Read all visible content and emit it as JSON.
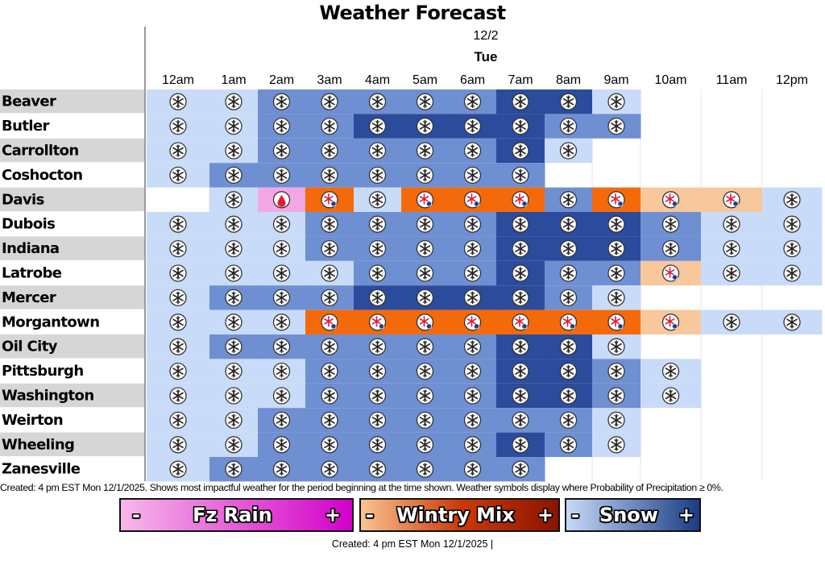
{
  "header": {
    "title": "Weather Forecast",
    "date": "12/2",
    "day": "Tue"
  },
  "chart_data": {
    "type": "heatmap",
    "title": "Weather Forecast",
    "x": [
      "12am",
      "1am",
      "2am",
      "3am",
      "4am",
      "5am",
      "6am",
      "7am",
      "8am",
      "9am",
      "10am",
      "11am",
      "12pm"
    ],
    "y": [
      "Beaver",
      "Butler",
      "Carrollton",
      "Coshocton",
      "Davis",
      "Dubois",
      "Indiana",
      "Latrobe",
      "Mercer",
      "Morgantown",
      "Oil City",
      "Pittsburgh",
      "Washington",
      "Weirton",
      "Wheeling",
      "Zanesville"
    ],
    "cells": [
      [
        "S1",
        "S1",
        "S2",
        "S2",
        "S2",
        "S2",
        "S2",
        "S3",
        "S3",
        "S1",
        null,
        null,
        null
      ],
      [
        "S1",
        "S1",
        "S2",
        "S2",
        "S3",
        "S3",
        "S3",
        "S3",
        "S2",
        "S2",
        null,
        null,
        null
      ],
      [
        "S1",
        "S1",
        "S2",
        "S2",
        "S2",
        "S2",
        "S2",
        "S3",
        "S1",
        null,
        null,
        null,
        null
      ],
      [
        "S1",
        "S2",
        "S2",
        "S2",
        "S2",
        "S2",
        "S2",
        "S2",
        null,
        null,
        null,
        null,
        null
      ],
      [
        null,
        "S1",
        "R1",
        "W3",
        "S1",
        "W3",
        "W3",
        "W3",
        "S2",
        "W3",
        "W1",
        "W1",
        "S1"
      ],
      [
        "S1",
        "S1",
        "S1",
        "S2",
        "S2",
        "S2",
        "S2",
        "S3",
        "S3",
        "S3",
        "S2",
        "S1",
        "S1"
      ],
      [
        "S1",
        "S1",
        "S1",
        "S2",
        "S2",
        "S2",
        "S2",
        "S3",
        "S3",
        "S3",
        "S2",
        "S1",
        "S1"
      ],
      [
        "S1",
        "S1",
        "S1",
        "S1",
        "S2",
        "S2",
        "S2",
        "S3",
        "S2",
        "S2",
        "W1",
        "S1",
        "S1"
      ],
      [
        "S1",
        "S2",
        "S2",
        "S2",
        "S3",
        "S3",
        "S3",
        "S3",
        "S2",
        "S1",
        null,
        null,
        null
      ],
      [
        "S1",
        "S1",
        "S1",
        "W3",
        "W3",
        "W3",
        "W3",
        "W3",
        "W3",
        "W3",
        "W1",
        "S1",
        "S1"
      ],
      [
        "S1",
        "S2",
        "S2",
        "S2",
        "S2",
        "S2",
        "S2",
        "S3",
        "S3",
        "S1",
        null,
        null,
        null
      ],
      [
        "S1",
        "S1",
        "S1",
        "S2",
        "S2",
        "S2",
        "S2",
        "S3",
        "S3",
        "S2",
        "S1",
        null,
        null
      ],
      [
        "S1",
        "S1",
        "S1",
        "S2",
        "S2",
        "S2",
        "S2",
        "S3",
        "S3",
        "S2",
        "S1",
        null,
        null
      ],
      [
        "S1",
        "S1",
        "S2",
        "S2",
        "S2",
        "S2",
        "S2",
        "S2",
        "S2",
        "S1",
        null,
        null,
        null
      ],
      [
        "S1",
        "S1",
        "S2",
        "S2",
        "S2",
        "S2",
        "S2",
        "S3",
        "S2",
        "S1",
        null,
        null,
        null
      ],
      [
        "S1",
        "S2",
        "S2",
        "S2",
        "S2",
        "S2",
        "S2",
        "S2",
        null,
        null,
        null,
        null,
        null
      ]
    ],
    "colors": {
      "S1": "#c8dbf8",
      "S2": "#6e8fd2",
      "S3": "#2b4c9c",
      "W1": "#f8c79c",
      "W3": "#f46a0b",
      "R1": "#f3a8e6"
    },
    "legend": [
      {
        "minus": "-",
        "label": "Fz Rain",
        "plus": "+"
      },
      {
        "minus": "-",
        "label": "Wintry Mix",
        "plus": "+"
      },
      {
        "minus": "-",
        "label": "Snow",
        "plus": "+"
      }
    ]
  },
  "footnote": "Created: 4 pm EST Mon 12/1/2025. Shows most impactful weather for the period beginning at the time shown. Weather symbols display where Probability of Precipitation ≥ 0%.",
  "created_bottom": "Created: 4 pm EST Mon 12/1/2025  |"
}
